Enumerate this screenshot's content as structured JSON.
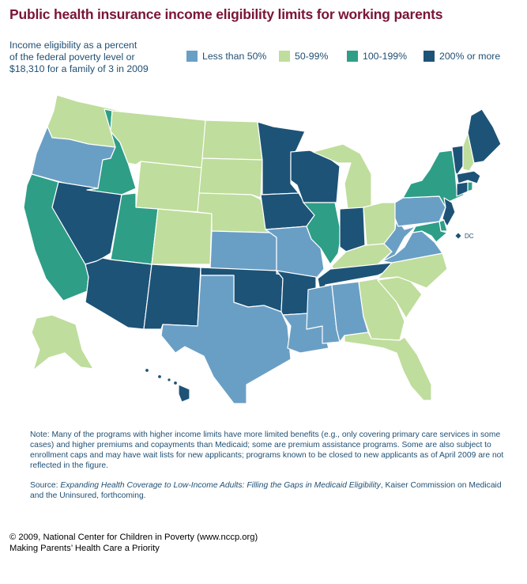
{
  "title": "Public health insurance income eligibility limits for working parents",
  "subtitle_lines": [
    "Income eligibility as a percent",
    "of the federal poverty level or",
    "$18,310 for a family of 3 in 2009"
  ],
  "legend": [
    {
      "label": "Less than 50%",
      "color": "#6a9fc5"
    },
    {
      "label": "50-99%",
      "color": "#bfdd9c"
    },
    {
      "label": "100-199%",
      "color": "#2e9e87"
    },
    {
      "label": "200% or more",
      "color": "#1d5377"
    }
  ],
  "map_data": {
    "dc_label": "DC",
    "categories": {
      "lt50": "Less than 50%",
      "c50_99": "50-99%",
      "c100_199": "100-199%",
      "ge200": "200% or more"
    },
    "states": {
      "WA": "c50_99",
      "OR": "lt50",
      "CA": "c100_199",
      "ID": "c100_199",
      "NV": "ge200",
      "MT": "c50_99",
      "WY": "c50_99",
      "UT": "c100_199",
      "AZ": "ge200",
      "CO": "c50_99",
      "NM": "ge200",
      "ND": "c50_99",
      "SD": "c50_99",
      "NE": "c50_99",
      "KS": "lt50",
      "OK": "ge200",
      "TX": "lt50",
      "MN": "ge200",
      "IA": "ge200",
      "MO": "lt50",
      "AR": "ge200",
      "LA": "lt50",
      "WI": "ge200",
      "IL": "c100_199",
      "MI": "c50_99",
      "IN": "ge200",
      "OH": "c50_99",
      "KY": "c50_99",
      "TN": "ge200",
      "MS": "lt50",
      "AL": "lt50",
      "GA": "c50_99",
      "FL": "c50_99",
      "SC": "c50_99",
      "NC": "c50_99",
      "VA": "lt50",
      "WV": "lt50",
      "PA": "lt50",
      "NY": "c100_199",
      "VT": "ge200",
      "NH": "c50_99",
      "ME": "ge200",
      "MA": "ge200",
      "RI": "c100_199",
      "CT": "ge200",
      "NJ": "ge200",
      "DE": "c100_199",
      "MD": "c100_199",
      "DC": "ge200",
      "AK": "c50_99",
      "HI": "ge200"
    }
  },
  "note": "Note: Many of the programs with higher income limits have more limited benefits (e.g., only covering primary care services in some cases) and higher premiums and copayments than Medicaid; some are premium assistance programs. Some are also subject to enrollment caps and may have wait lists for new applicants; programs known to be closed to new applicants as of April 2009 are not reflected in the figure.",
  "source": {
    "prefix": "Source: ",
    "title": "Expanding Health Coverage to Low-Income Adults: Filling the Gaps in Medicaid Eligibility",
    "suffix": ", Kaiser Commission on Medicaid and the Uninsured, forthcoming."
  },
  "credit_lines": [
    "© 2009, National Center for Children in Poverty (www.nccp.org)",
    "Making Parents’ Health Care a Priority"
  ]
}
